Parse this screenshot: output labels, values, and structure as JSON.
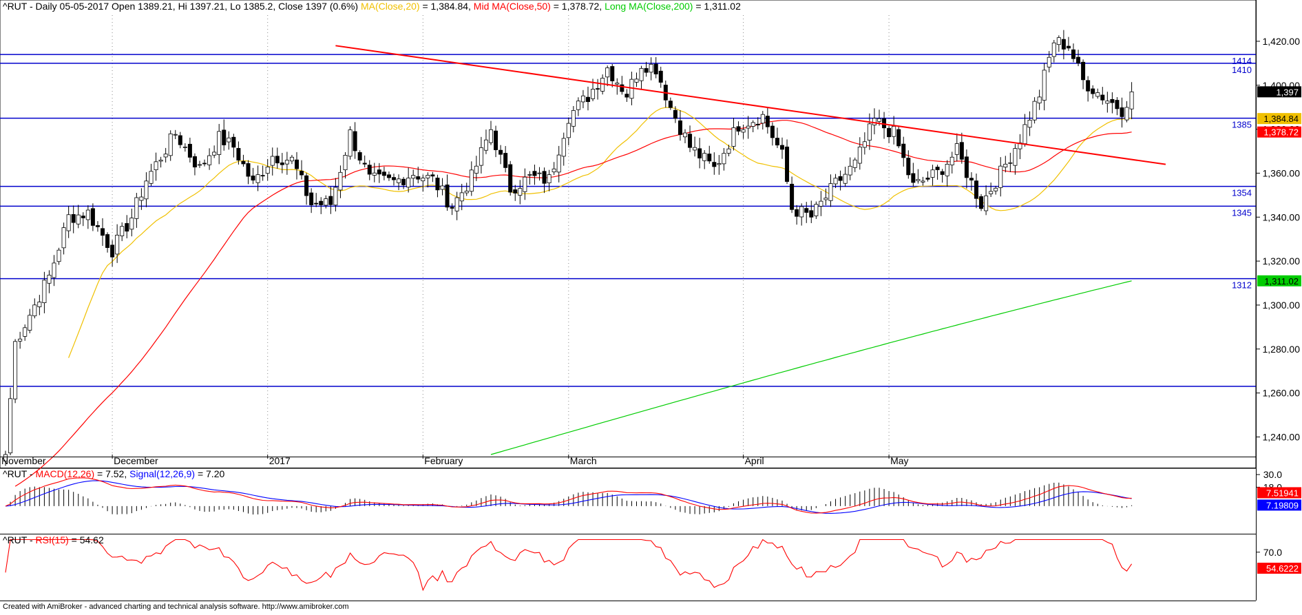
{
  "header": {
    "symbol": "^RUT",
    "description": " - Daily 05-05-2017 Open 1389.21, Hi 1397.21, Lo 1385.2, Close 1397 (0.6%) ",
    "ma20_label": "MA(Close,20)",
    "ma20_value": " = 1,384.84, ",
    "ma50_label": "Mid MA(Close,50)",
    "ma50_value": " = 1,378.72, ",
    "ma200_label": "Long MA(Close,200)",
    "ma200_value": " = 1,311.02"
  },
  "macd_header": {
    "symbol": "^RUT - ",
    "macd_label": "MACD(12,26)",
    "macd_value": " = 7.52, ",
    "signal_label": "Signal(12,26,9)",
    "signal_value": " = 7.20"
  },
  "rsi_header": {
    "symbol": "^RUT - ",
    "rsi_label": "RSI(15)",
    "rsi_value": " = 54.62"
  },
  "footer": "Created with AmiBroker - advanced charting and technical analysis software. http://www.amibroker.com",
  "colors": {
    "ma20": "#f0c000",
    "ma50": "#ff0000",
    "ma200": "#00cc00",
    "levels": "#0000cc",
    "trendline": "#ff0000",
    "macd": "#ff0000",
    "signal": "#0000ff",
    "rsi": "#ff0000"
  },
  "chart_data": [
    {
      "type": "candlestick",
      "title": "^RUT - Daily 05-05-2017",
      "ylim": [
        1232,
        1430
      ],
      "y_ticks": [
        "1,240.00",
        "1,260.00",
        "1,280.00",
        "1,300.00",
        "1,320.00",
        "1,340.00",
        "1,360.00",
        "1,380.00",
        "1,400.00",
        "1,420.00"
      ],
      "month_labels": [
        "November",
        "December",
        "2017",
        "February",
        "March",
        "April",
        "May"
      ],
      "grid": true,
      "horizontal_levels": [
        {
          "value": 1414,
          "label": "1414"
        },
        {
          "value": 1410,
          "label": "1410"
        },
        {
          "value": 1385,
          "label": "1385"
        },
        {
          "value": 1354,
          "label": "1354"
        },
        {
          "value": 1345,
          "label": "1345"
        },
        {
          "value": 1312,
          "label": "1312"
        },
        {
          "value": 1263,
          "label": ""
        }
      ],
      "trendline": {
        "from": [
          68,
          1418
        ],
        "to": [
          239,
          1364
        ]
      },
      "price_tags": [
        {
          "value": 1397,
          "label": "1,397",
          "color": "#000000",
          "text_color": "#ffffff"
        },
        {
          "value": 1384.84,
          "label": "1,384.84",
          "color": "#f0c000",
          "text_color": "#000000"
        },
        {
          "value": 1378.72,
          "label": "1,378.72",
          "color": "#ff0000",
          "text_color": "#ffffff"
        },
        {
          "value": 1311.02,
          "label": "1,311.02",
          "color": "#00cc00",
          "text_color": "#000000"
        }
      ],
      "anchors": [
        [
          0,
          1232
        ],
        [
          2,
          1283
        ],
        [
          6,
          1300
        ],
        [
          9,
          1313
        ],
        [
          13,
          1340
        ],
        [
          17,
          1342
        ],
        [
          22,
          1325
        ],
        [
          26,
          1340
        ],
        [
          29,
          1357
        ],
        [
          35,
          1378
        ],
        [
          40,
          1362
        ],
        [
          44,
          1376
        ],
        [
          47,
          1372
        ],
        [
          51,
          1355
        ],
        [
          55,
          1368
        ],
        [
          59,
          1366
        ],
        [
          63,
          1346
        ],
        [
          67,
          1346
        ],
        [
          71,
          1378
        ],
        [
          75,
          1357
        ],
        [
          80,
          1356
        ],
        [
          84,
          1360
        ],
        [
          88,
          1357
        ],
        [
          92,
          1345
        ],
        [
          96,
          1358
        ],
        [
          100,
          1380
        ],
        [
          104,
          1353
        ],
        [
          108,
          1358
        ],
        [
          112,
          1357
        ],
        [
          116,
          1386
        ],
        [
          120,
          1395
        ],
        [
          124,
          1408
        ],
        [
          128,
          1396
        ],
        [
          131,
          1410
        ],
        [
          134,
          1408
        ],
        [
          137,
          1390
        ],
        [
          141,
          1372
        ],
        [
          146,
          1362
        ],
        [
          151,
          1382
        ],
        [
          156,
          1386
        ],
        [
          160,
          1368
        ],
        [
          162,
          1344
        ],
        [
          166,
          1340
        ],
        [
          171,
          1355
        ],
        [
          175,
          1364
        ],
        [
          179,
          1384
        ],
        [
          183,
          1378
        ],
        [
          187,
          1354
        ],
        [
          192,
          1360
        ],
        [
          196,
          1370
        ],
        [
          201,
          1346
        ],
        [
          205,
          1360
        ],
        [
          209,
          1376
        ],
        [
          213,
          1396
        ],
        [
          216,
          1420
        ],
        [
          219,
          1418
        ],
        [
          222,
          1402
        ],
        [
          226,
          1395
        ],
        [
          230,
          1389
        ],
        [
          232,
          1397
        ]
      ],
      "series": [
        {
          "name": "MA(Close,20)",
          "type": "line",
          "start": 13,
          "last": 1384.84
        },
        {
          "name": "Mid MA(Close,50)",
          "type": "line",
          "start": 2,
          "last": 1378.72
        },
        {
          "name": "Long MA(Close,200)",
          "type": "line",
          "start": 100,
          "last": 1311.02
        }
      ]
    },
    {
      "type": "line",
      "title": "MACD(12,26)",
      "y_ticks": [
        "30.0",
        "18.0"
      ],
      "series": [
        {
          "name": "MACD(12,26)",
          "last": 7.52
        },
        {
          "name": "Signal(12,26,9)",
          "last": 7.2
        }
      ],
      "value_tags": [
        {
          "label": "7.51941",
          "color": "#ff0000"
        },
        {
          "label": "7.19809",
          "color": "#0000ff"
        }
      ]
    },
    {
      "type": "line",
      "title": "RSI(15)",
      "y_ticks": [
        "70.0"
      ],
      "series": [
        {
          "name": "RSI(15)",
          "last": 54.62
        }
      ],
      "value_tags": [
        {
          "label": "54.6222",
          "color": "#ff0000"
        }
      ]
    }
  ]
}
